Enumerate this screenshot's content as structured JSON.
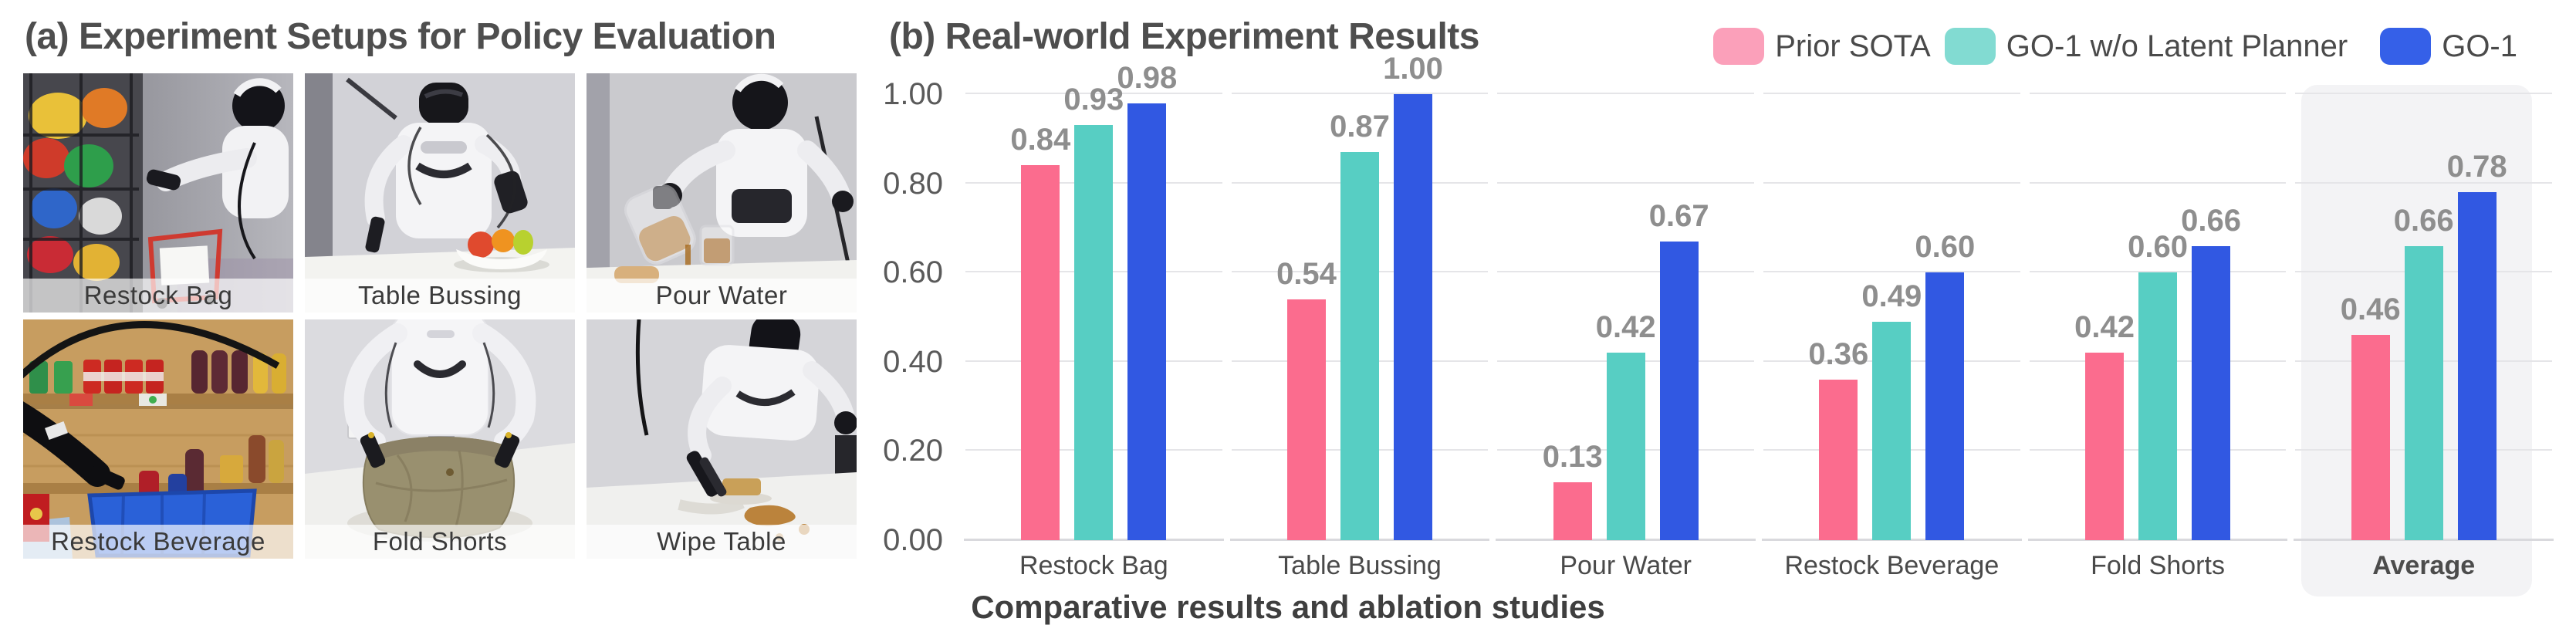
{
  "panel_a": {
    "title": "(a) Experiment Setups for Policy Evaluation",
    "photos": [
      {
        "label": "Restock Bag"
      },
      {
        "label": "Table Bussing"
      },
      {
        "label": "Pour Water"
      },
      {
        "label": "Restock Beverage"
      },
      {
        "label": "Fold Shorts"
      },
      {
        "label": "Wipe Table"
      }
    ]
  },
  "panel_b": {
    "title": "(b) Real-world Experiment Results",
    "caption": "Comparative results and ablation studies",
    "legend": [
      {
        "label": "Prior SOTA",
        "color": "#FBA0BA"
      },
      {
        "label": "GO-1 w/o Latent Planner",
        "color": "#82DBD2"
      },
      {
        "label": "GO-1",
        "color": "#3560E8"
      }
    ]
  },
  "chart_data": {
    "type": "bar",
    "title": "(b) Real-world Experiment Results",
    "categories": [
      "Restock Bag",
      "Table Bussing",
      "Pour Water",
      "Restock Beverage",
      "Fold Shorts",
      "Average"
    ],
    "series": [
      {
        "name": "Prior SOTA",
        "color": "#FB6C8E",
        "values": [
          0.84,
          0.54,
          0.13,
          0.36,
          0.42,
          0.46
        ]
      },
      {
        "name": "GO-1 w/o Latent Planner",
        "color": "#57CEC3",
        "values": [
          0.93,
          0.87,
          0.42,
          0.49,
          0.6,
          0.66
        ]
      },
      {
        "name": "GO-1",
        "color": "#3158E2",
        "values": [
          0.98,
          1.0,
          0.67,
          0.6,
          0.66,
          0.78
        ]
      }
    ],
    "xlabel": "",
    "ylabel": "",
    "ylim": [
      0,
      1
    ],
    "yticks": [
      0,
      0.2,
      0.4,
      0.6,
      0.8,
      1.0
    ],
    "grid": true,
    "value_labels": true,
    "legend_position": "top-right",
    "highlight_category": "Average",
    "highlight_color": "#F3F3F5"
  }
}
